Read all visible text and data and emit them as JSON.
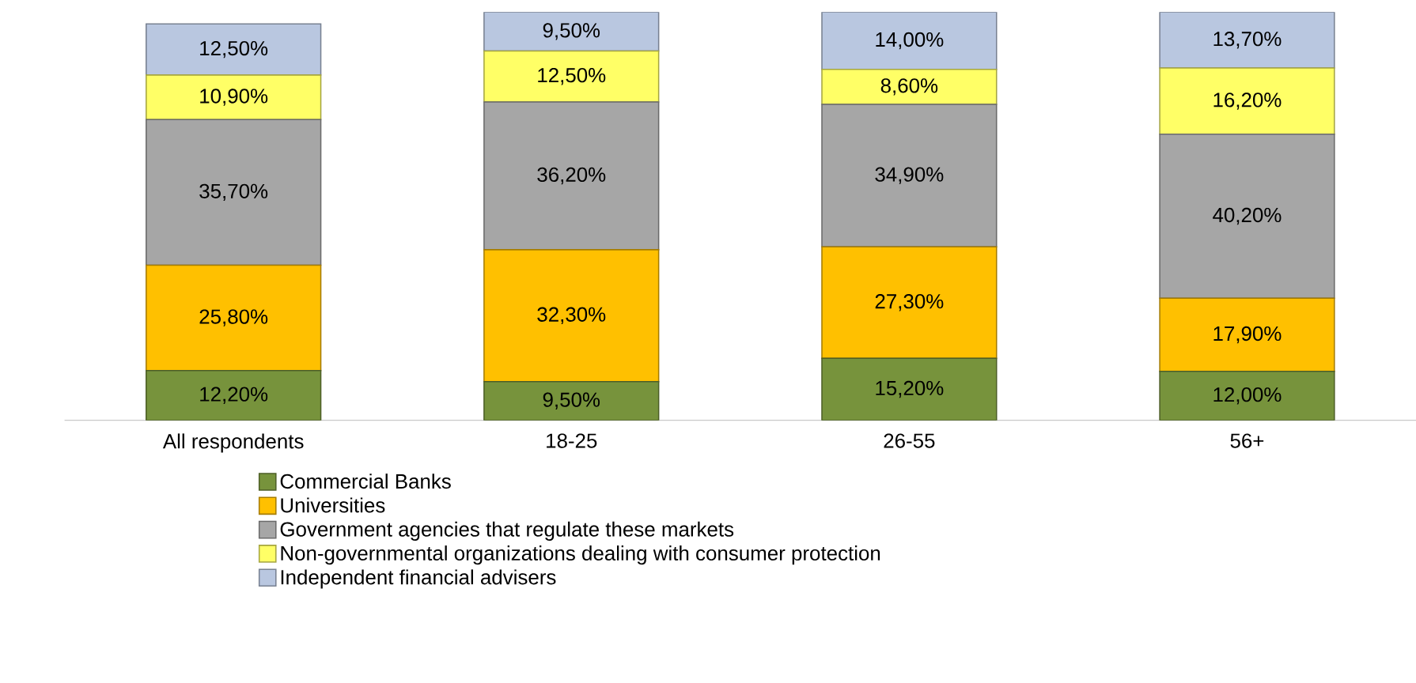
{
  "chart_data": {
    "type": "bar",
    "stacked": true,
    "legend": "bottom",
    "categories": [
      "All respondents",
      "18-25",
      "26-55",
      "56+"
    ],
    "series": [
      {
        "name": "Commercial Banks",
        "color": "#77933c",
        "values": [
          12.2,
          9.5,
          15.2,
          12.0
        ],
        "value_labels": [
          "12,20%",
          "9,50%",
          "15,20%",
          "12,00%"
        ]
      },
      {
        "name": "Universities",
        "color": "#ffc000",
        "values": [
          25.8,
          32.3,
          27.3,
          17.9
        ],
        "value_labels": [
          "25,80%",
          "32,30%",
          "27,30%",
          "17,90%"
        ]
      },
      {
        "name": "Government agencies that regulate these markets",
        "color": "#a6a6a6",
        "values": [
          35.7,
          36.2,
          34.9,
          40.2
        ],
        "value_labels": [
          "35,70%",
          "36,20%",
          "34,90%",
          "40,20%"
        ]
      },
      {
        "name": "Non-governmental organizations dealing with consumer protection",
        "color": "#ffff66",
        "values": [
          10.9,
          12.5,
          8.6,
          16.2
        ],
        "value_labels": [
          "10,90%",
          "12,50%",
          "8,60%",
          "16,20%"
        ]
      },
      {
        "name": "Independent financial advisers",
        "color": "#b9c7e0",
        "values": [
          12.5,
          9.5,
          14.0,
          13.7
        ],
        "value_labels": [
          "12,50%",
          "9,50%",
          "14,00%",
          "13,70%"
        ]
      }
    ]
  }
}
